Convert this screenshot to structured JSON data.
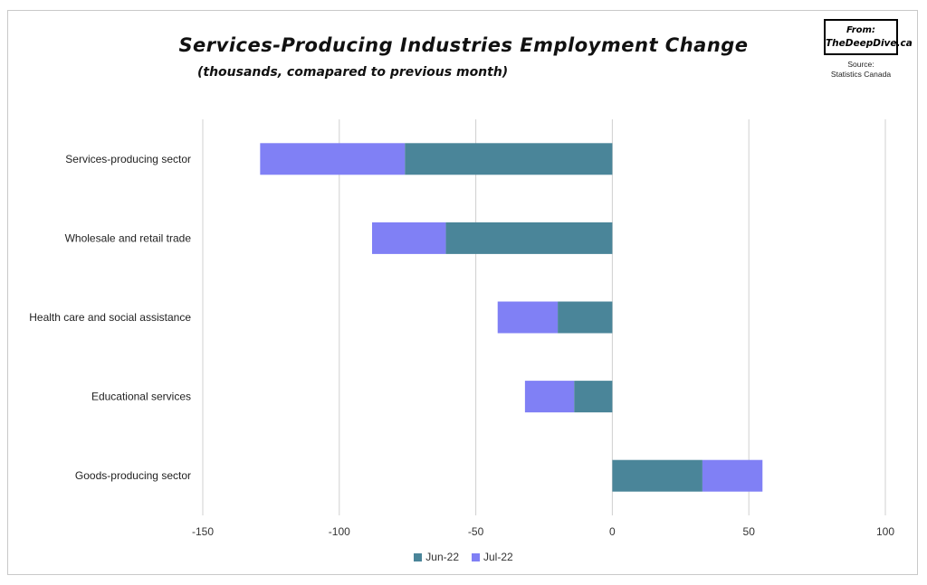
{
  "header": {
    "title": "Services-Producing Industries Employment Change",
    "subtitle": "(thousands, comapared to previous month)",
    "badge_line1": "From:",
    "badge_line2": "TheDeepDive.ca",
    "source_line1": "Source:",
    "source_line2": "Statistics Canada"
  },
  "colors": {
    "jun": "#4a8599",
    "jul": "#8080f5",
    "grid": "#d0d0d0"
  },
  "chart_data": {
    "type": "bar",
    "orientation": "horizontal",
    "stacked": true,
    "categories": [
      "Services-producing sector",
      "Wholesale and retail trade",
      "Health care and social assistance",
      "Educational services",
      "Goods-producing sector"
    ],
    "series": [
      {
        "name": "Jun-22",
        "values": [
          -76,
          -61,
          -20,
          -14,
          33
        ]
      },
      {
        "name": "Jul-22",
        "values": [
          -53,
          -27,
          -22,
          -18,
          22
        ]
      }
    ],
    "xlim": [
      -150,
      100
    ],
    "xticks": [
      "-150",
      "-100",
      "-50",
      "0",
      "50",
      "100"
    ],
    "grid": true,
    "legend_position": "bottom"
  }
}
